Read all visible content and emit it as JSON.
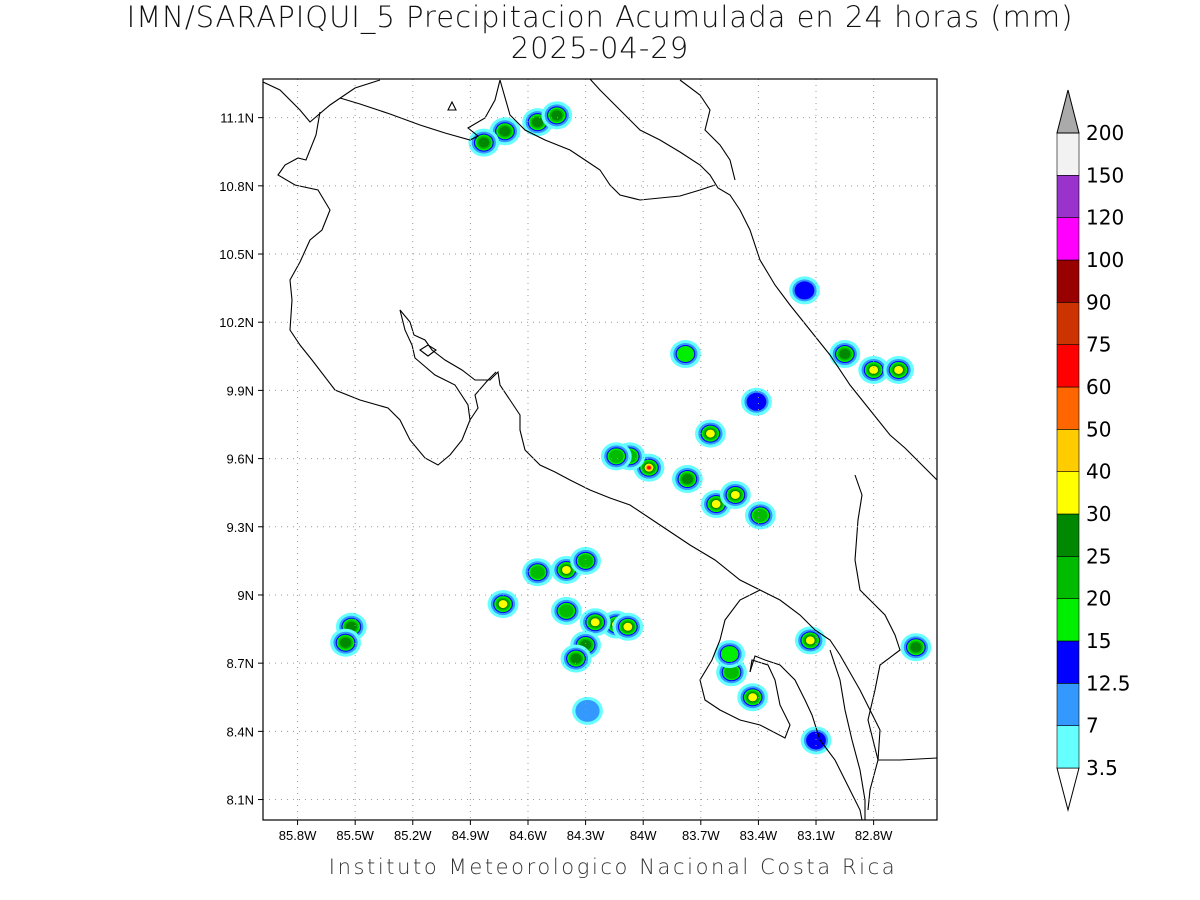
{
  "title": {
    "line1": "IMN/SARAPIQUI_5 Precipitacion Acumulada en 24 horas (mm)",
    "line2": "2025-04-29"
  },
  "credit": "Instituto Meteorologico Nacional Costa Rica",
  "map": {
    "lon_range": [
      -85.98,
      -82.47
    ],
    "lat_range": [
      8.01,
      11.27
    ],
    "lon_ticks": [
      "85.8W",
      "85.5W",
      "85.2W",
      "84.9W",
      "84.6W",
      "84.3W",
      "84W",
      "83.7W",
      "83.4W",
      "83.1W",
      "82.8W"
    ],
    "lon_values": [
      -85.8,
      -85.5,
      -85.2,
      -84.9,
      -84.6,
      -84.3,
      -84.0,
      -83.7,
      -83.4,
      -83.1,
      -82.8
    ],
    "lat_ticks": [
      "11.1N",
      "10.8N",
      "10.5N",
      "10.2N",
      "9.9N",
      "9.6N",
      "9.3N",
      "9N",
      "8.7N",
      "8.4N",
      "8.1N"
    ],
    "lat_values": [
      11.1,
      10.8,
      10.5,
      10.2,
      9.9,
      9.6,
      9.3,
      9.0,
      8.7,
      8.4,
      8.1
    ],
    "grid": true,
    "coastline_color": "#000000"
  },
  "colorbar": {
    "labels": [
      "3.5",
      "7",
      "12.5",
      "15",
      "20",
      "25",
      "30",
      "40",
      "50",
      "60",
      "75",
      "90",
      "100",
      "120",
      "150",
      "200"
    ],
    "colors": [
      "#66ffff",
      "#3399ff",
      "#0000ff",
      "#00ee00",
      "#00bb00",
      "#008800",
      "#ffff00",
      "#ffcc00",
      "#ff6600",
      "#ff0000",
      "#cc3300",
      "#990000",
      "#ff00ff",
      "#9933cc",
      "#f2f2f2",
      "#aaaaaa"
    ]
  },
  "precip_cells": [
    {
      "lon": -84.72,
      "lat": 11.04,
      "max_mm": 25
    },
    {
      "lon": -84.55,
      "lat": 11.08,
      "max_mm": 25
    },
    {
      "lon": -84.83,
      "lat": 10.99,
      "max_mm": 25
    },
    {
      "lon": -84.45,
      "lat": 11.11,
      "max_mm": 25
    },
    {
      "lon": -83.78,
      "lat": 10.06,
      "max_mm": 15
    },
    {
      "lon": -83.16,
      "lat": 10.34,
      "max_mm": 12.5
    },
    {
      "lon": -82.95,
      "lat": 10.06,
      "max_mm": 25
    },
    {
      "lon": -82.8,
      "lat": 9.99,
      "max_mm": 30
    },
    {
      "lon": -82.67,
      "lat": 9.99,
      "max_mm": 30
    },
    {
      "lon": -83.41,
      "lat": 9.85,
      "max_mm": 12.5
    },
    {
      "lon": -83.97,
      "lat": 9.56,
      "max_mm": 60
    },
    {
      "lon": -83.77,
      "lat": 9.51,
      "max_mm": 25
    },
    {
      "lon": -83.65,
      "lat": 9.71,
      "max_mm": 30
    },
    {
      "lon": -83.62,
      "lat": 9.4,
      "max_mm": 30
    },
    {
      "lon": -83.52,
      "lat": 9.44,
      "max_mm": 30
    },
    {
      "lon": -83.39,
      "lat": 9.35,
      "max_mm": 20
    },
    {
      "lon": -84.07,
      "lat": 9.61,
      "max_mm": 20
    },
    {
      "lon": -84.14,
      "lat": 9.61,
      "max_mm": 20
    },
    {
      "lon": -84.73,
      "lat": 8.96,
      "max_mm": 30
    },
    {
      "lon": -84.55,
      "lat": 9.1,
      "max_mm": 20
    },
    {
      "lon": -84.4,
      "lat": 9.11,
      "max_mm": 30
    },
    {
      "lon": -84.3,
      "lat": 9.15,
      "max_mm": 20
    },
    {
      "lon": -84.14,
      "lat": 8.87,
      "max_mm": 40
    },
    {
      "lon": -84.08,
      "lat": 8.86,
      "max_mm": 30
    },
    {
      "lon": -84.25,
      "lat": 8.88,
      "max_mm": 30
    },
    {
      "lon": -84.3,
      "lat": 8.78,
      "max_mm": 25
    },
    {
      "lon": -84.35,
      "lat": 8.72,
      "max_mm": 25
    },
    {
      "lon": -84.4,
      "lat": 8.93,
      "max_mm": 20
    },
    {
      "lon": -85.52,
      "lat": 8.86,
      "max_mm": 25
    },
    {
      "lon": -85.55,
      "lat": 8.79,
      "max_mm": 25
    },
    {
      "lon": -83.43,
      "lat": 8.55,
      "max_mm": 30
    },
    {
      "lon": -83.54,
      "lat": 8.66,
      "max_mm": 20
    },
    {
      "lon": -83.55,
      "lat": 8.74,
      "max_mm": 15
    },
    {
      "lon": -83.13,
      "lat": 8.8,
      "max_mm": 30
    },
    {
      "lon": -82.58,
      "lat": 8.77,
      "max_mm": 25
    },
    {
      "lon": -83.1,
      "lat": 8.36,
      "max_mm": 12.5
    },
    {
      "lon": -84.29,
      "lat": 8.49,
      "max_mm": 7
    }
  ]
}
